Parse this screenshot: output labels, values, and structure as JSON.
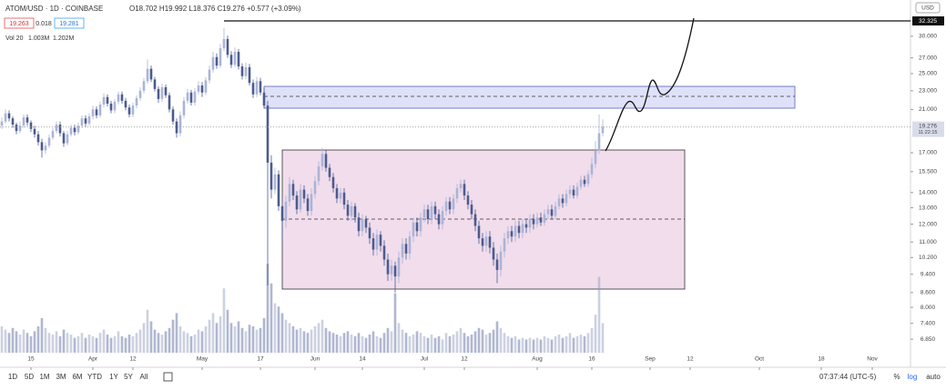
{
  "chart_data": {
    "type": "candlestick",
    "symbol": "ATOM/USD · 1D · COINBASE",
    "ohlc_legend": "O18.702 H19.992 L18.376 C19.276 +0.577 (+3.09%)",
    "bid": "19.263",
    "spread": "0.018",
    "ask": "19.281",
    "volume_legend": [
      "Vol 20",
      "1.003M",
      "1.202M"
    ],
    "currency": "USD",
    "log_scale": true,
    "grid": false,
    "up_color": "#aab4d6",
    "down_color": "#4c5b8f",
    "volume_color": "#8f98bd",
    "x": [
      6,
      7,
      8,
      9,
      10,
      11,
      12,
      13,
      14,
      15,
      16,
      17,
      18,
      19,
      20,
      21,
      22,
      23,
      24,
      25,
      26,
      27,
      28,
      29,
      30,
      31,
      32,
      33,
      34,
      35,
      36,
      37,
      38,
      39,
      40,
      41,
      42,
      43,
      44,
      45,
      46,
      47,
      48,
      49,
      50,
      51,
      52,
      53,
      54,
      55,
      56,
      57,
      58,
      59,
      60,
      61,
      62,
      63,
      64,
      65,
      66,
      67,
      68,
      69,
      70,
      71,
      72,
      73,
      74,
      75,
      76,
      77,
      78,
      79,
      80,
      81,
      82,
      83,
      84,
      85,
      86,
      87,
      88,
      89,
      90,
      91,
      92,
      93,
      94,
      95,
      96,
      97,
      98,
      99,
      100,
      101,
      102,
      103,
      104,
      105,
      106,
      107,
      108,
      109,
      110,
      111,
      112,
      113,
      114,
      115,
      116,
      117,
      118,
      119,
      120,
      121,
      122,
      123,
      124,
      125,
      126,
      127,
      128,
      129,
      130,
      131,
      132,
      133,
      134,
      135,
      136,
      137,
      138,
      139,
      140,
      141,
      142,
      143,
      144,
      145,
      146,
      147,
      148,
      149,
      150,
      151,
      152,
      153,
      154,
      155,
      156,
      157,
      158,
      159,
      160,
      161,
      162,
      163,
      164,
      165,
      166,
      167,
      168,
      169,
      170,
      171
    ],
    "open": [
      19.4,
      19.8,
      20.6,
      20.1,
      19.5,
      18.9,
      19.4,
      20.2,
      19.7,
      19.1,
      18.6,
      17.9,
      17.2,
      17.6,
      18.3,
      18.9,
      19.5,
      18.7,
      17.8,
      18.6,
      19.2,
      18.8,
      19.4,
      20.1,
      19.6,
      20.3,
      21.0,
      20.4,
      21.5,
      22.3,
      21.6,
      20.9,
      21.8,
      22.6,
      21.9,
      21.2,
      20.5,
      21.4,
      22.2,
      23.0,
      24.1,
      25.6,
      24.3,
      23.2,
      22.1,
      23.4,
      22.5,
      21.0,
      19.8,
      18.7,
      20.4,
      21.9,
      22.8,
      21.7,
      22.9,
      23.6,
      22.8,
      24.2,
      25.5,
      27.1,
      26.0,
      28.3,
      29.6,
      27.4,
      26.1,
      27.8,
      25.9,
      24.7,
      25.8,
      23.9,
      22.6,
      24.1,
      22.8,
      21.4,
      16.2,
      14.2,
      15.3,
      13.1,
      12.2,
      13.4,
      14.6,
      13.8,
      12.9,
      14.2,
      13.6,
      12.8,
      13.9,
      14.8,
      15.9,
      16.9,
      15.8,
      15.1,
      14.3,
      13.6,
      14.0,
      13.2,
      12.5,
      13.1,
      12.4,
      11.6,
      12.3,
      11.8,
      11.2,
      10.6,
      11.4,
      10.8,
      10.1,
      9.4,
      9.8,
      9.3,
      10.2,
      10.9,
      10.4,
      11.3,
      12.1,
      11.6,
      12.4,
      12.9,
      12.3,
      13.1,
      12.6,
      12.0,
      12.8,
      13.4,
      12.9,
      13.6,
      14.3,
      14.6,
      13.8,
      13.2,
      12.6,
      11.9,
      11.2,
      10.8,
      11.3,
      10.7,
      10.1,
      9.6,
      10.5,
      11.2,
      11.6,
      11.3,
      11.9,
      11.5,
      12.0,
      11.8,
      12.3,
      12.0,
      12.4,
      12.1,
      12.6,
      12.9,
      12.5,
      13.1,
      13.6,
      13.3,
      13.9,
      14.2,
      13.8,
      14.4,
      14.9,
      14.6,
      15.3,
      16.1,
      17.2,
      18.7
    ],
    "high": [
      20.2,
      21.0,
      20.9,
      20.3,
      19.7,
      19.8,
      20.5,
      20.5,
      19.9,
      19.4,
      18.9,
      18.2,
      17.9,
      18.6,
      19.2,
      19.8,
      19.8,
      18.9,
      18.9,
      19.5,
      19.5,
      19.7,
      20.4,
      20.4,
      20.6,
      21.4,
      21.3,
      21.8,
      22.7,
      22.6,
      21.9,
      22.1,
      22.9,
      22.9,
      22.2,
      21.5,
      21.7,
      22.5,
      23.4,
      24.5,
      26.8,
      26.0,
      24.6,
      23.5,
      23.8,
      23.7,
      22.8,
      21.3,
      20.1,
      20.8,
      22.3,
      23.2,
      23.1,
      23.3,
      24.1,
      24.0,
      24.6,
      26.0,
      27.8,
      27.6,
      28.9,
      31.2,
      30.1,
      27.9,
      28.4,
      28.2,
      26.3,
      26.4,
      26.2,
      24.3,
      24.6,
      24.5,
      23.3,
      21.9,
      16.8,
      15.8,
      15.6,
      13.6,
      13.8,
      15.1,
      14.9,
      14.1,
      14.6,
      14.5,
      13.9,
      14.3,
      15.2,
      16.3,
      17.4,
      17.2,
      16.1,
      15.4,
      14.6,
      14.3,
      14.3,
      13.5,
      13.4,
      13.3,
      12.7,
      12.6,
      12.5,
      12.1,
      11.5,
      11.7,
      11.6,
      11.1,
      10.4,
      10.1,
      10.0,
      10.5,
      11.2,
      11.2,
      11.6,
      12.4,
      12.4,
      12.7,
      13.2,
      13.2,
      13.4,
      13.4,
      12.9,
      13.1,
      13.7,
      13.7,
      13.9,
      14.6,
      14.9,
      14.9,
      14.1,
      13.5,
      12.9,
      12.2,
      11.5,
      11.6,
      11.6,
      11.0,
      10.4,
      10.8,
      11.5,
      11.9,
      11.9,
      12.2,
      12.2,
      12.3,
      12.3,
      12.6,
      12.6,
      12.7,
      12.7,
      12.9,
      13.2,
      13.2,
      13.4,
      13.9,
      13.9,
      14.2,
      14.5,
      14.5,
      14.7,
      15.2,
      15.2,
      15.6,
      16.6,
      18.0,
      20.5,
      20.0
    ],
    "low": [
      19.1,
      19.6,
      19.8,
      19.2,
      18.6,
      18.7,
      19.2,
      19.4,
      18.8,
      18.3,
      17.6,
      16.6,
      16.9,
      17.4,
      18.1,
      18.7,
      18.4,
      17.5,
      17.6,
      18.4,
      18.5,
      18.6,
      19.2,
      19.3,
      19.4,
      20.0,
      20.1,
      20.2,
      21.2,
      21.3,
      20.6,
      20.6,
      21.5,
      21.6,
      20.9,
      20.2,
      20.2,
      21.1,
      21.9,
      22.7,
      23.8,
      24.0,
      22.9,
      21.7,
      21.8,
      22.2,
      20.7,
      19.5,
      18.3,
      18.4,
      20.1,
      21.6,
      21.4,
      21.4,
      22.6,
      22.3,
      22.5,
      23.8,
      25.1,
      25.6,
      25.7,
      27.9,
      27.0,
      25.7,
      25.8,
      25.5,
      24.3,
      24.3,
      23.6,
      22.2,
      22.3,
      22.5,
      21.1,
      8.9,
      13.6,
      13.9,
      12.8,
      11.1,
      11.8,
      13.1,
      13.5,
      12.6,
      12.7,
      13.3,
      12.5,
      12.5,
      13.6,
      14.5,
      15.6,
      15.5,
      14.8,
      14.0,
      13.3,
      13.3,
      12.9,
      12.2,
      12.2,
      12.1,
      11.3,
      11.3,
      11.5,
      10.9,
      10.3,
      10.3,
      10.5,
      9.8,
      9.1,
      9.1,
      8.6,
      9.0,
      9.9,
      10.1,
      10.1,
      11.0,
      11.3,
      11.3,
      12.1,
      12.0,
      12.0,
      12.3,
      11.7,
      11.7,
      12.5,
      12.6,
      12.6,
      13.3,
      14.0,
      13.5,
      12.9,
      12.3,
      11.6,
      10.9,
      10.5,
      10.5,
      10.4,
      9.8,
      9.0,
      9.3,
      10.2,
      10.9,
      11.0,
      11.0,
      11.2,
      11.2,
      11.5,
      11.5,
      11.7,
      11.8,
      11.9,
      11.9,
      12.3,
      12.3,
      12.3,
      12.9,
      13.0,
      13.1,
      13.6,
      13.6,
      13.6,
      14.2,
      14.4,
      14.4,
      15.0,
      15.8,
      16.9,
      18.4
    ],
    "close": [
      19.8,
      20.6,
      20.1,
      19.5,
      18.9,
      19.4,
      20.2,
      19.7,
      19.1,
      18.6,
      17.9,
      17.2,
      17.6,
      18.3,
      18.9,
      19.5,
      18.7,
      17.8,
      18.6,
      19.2,
      18.8,
      19.4,
      20.1,
      19.6,
      20.3,
      21.0,
      20.4,
      21.5,
      22.3,
      21.6,
      20.9,
      21.8,
      22.6,
      21.9,
      21.2,
      20.5,
      21.4,
      22.2,
      23.0,
      24.1,
      25.6,
      24.3,
      23.2,
      22.1,
      23.4,
      22.5,
      21.0,
      19.8,
      18.7,
      20.4,
      21.9,
      22.8,
      21.7,
      22.9,
      23.6,
      22.8,
      24.2,
      25.5,
      27.1,
      26.0,
      28.3,
      29.6,
      27.4,
      26.1,
      27.8,
      25.9,
      24.7,
      25.8,
      23.9,
      22.6,
      24.1,
      22.8,
      21.4,
      16.2,
      14.2,
      15.3,
      13.1,
      12.2,
      13.4,
      14.6,
      13.8,
      12.9,
      14.2,
      13.6,
      12.8,
      13.9,
      14.8,
      15.9,
      16.9,
      15.8,
      15.1,
      14.3,
      13.6,
      14.0,
      13.2,
      12.5,
      13.1,
      12.4,
      11.6,
      12.3,
      11.8,
      11.2,
      10.6,
      11.4,
      10.8,
      10.1,
      9.4,
      9.8,
      9.3,
      10.2,
      10.9,
      10.4,
      11.3,
      12.1,
      11.6,
      12.4,
      12.9,
      12.3,
      13.1,
      12.6,
      12.0,
      12.8,
      13.4,
      12.9,
      13.6,
      14.3,
      14.6,
      13.8,
      13.2,
      12.6,
      11.9,
      11.2,
      10.8,
      11.3,
      10.7,
      10.1,
      9.6,
      10.5,
      11.2,
      11.6,
      11.3,
      11.9,
      11.5,
      12.0,
      11.8,
      12.3,
      12.0,
      12.4,
      12.1,
      12.6,
      12.9,
      12.5,
      13.1,
      13.6,
      13.3,
      13.9,
      14.2,
      13.8,
      14.4,
      14.9,
      14.6,
      15.3,
      16.1,
      17.2,
      18.7,
      19.3
    ],
    "volume": [
      1.6,
      1.4,
      1.2,
      1.5,
      1.3,
      1.1,
      1.4,
      1.2,
      1.0,
      1.3,
      1.6,
      2.1,
      1.5,
      1.2,
      1.1,
      1.3,
      1.0,
      1.4,
      1.2,
      1.1,
      0.9,
      1.0,
      1.2,
      0.9,
      1.1,
      1.0,
      0.9,
      1.2,
      1.4,
      1.1,
      0.9,
      1.0,
      1.3,
      1.0,
      0.9,
      1.1,
      1.0,
      1.2,
      1.4,
      1.8,
      2.6,
      1.9,
      1.4,
      1.2,
      1.1,
      1.3,
      1.5,
      2.0,
      2.4,
      1.6,
      1.3,
      1.2,
      1.0,
      1.1,
      1.4,
      1.3,
      1.6,
      2.0,
      2.4,
      1.8,
      2.2,
      3.9,
      2.6,
      1.8,
      1.6,
      1.9,
      1.5,
      1.3,
      1.7,
      1.6,
      1.4,
      1.5,
      2.1,
      5.4,
      4.2,
      3.0,
      2.8,
      2.4,
      2.0,
      1.8,
      1.6,
      1.4,
      1.5,
      1.3,
      1.2,
      1.4,
      1.6,
      1.8,
      2.0,
      1.5,
      1.3,
      1.2,
      1.1,
      1.0,
      1.2,
      1.3,
      1.1,
      1.0,
      1.2,
      1.0,
      0.9,
      1.1,
      1.3,
      1.0,
      0.9,
      1.2,
      1.5,
      1.3,
      3.6,
      1.8,
      1.4,
      1.2,
      1.0,
      1.1,
      1.3,
      1.2,
      1.0,
      0.9,
      1.1,
      0.9,
      1.0,
      0.8,
      1.2,
      1.0,
      1.1,
      1.3,
      1.5,
      1.2,
      1.0,
      1.1,
      1.3,
      1.5,
      1.4,
      1.1,
      1.2,
      1.4,
      1.9,
      1.5,
      1.2,
      1.0,
      0.9,
      1.0,
      0.8,
      0.9,
      0.8,
      0.9,
      0.8,
      0.9,
      0.8,
      1.0,
      0.9,
      0.8,
      1.0,
      1.1,
      0.9,
      1.0,
      1.2,
      0.9,
      1.0,
      1.1,
      1.0,
      1.2,
      1.5,
      2.3,
      4.6,
      1.8
    ],
    "volume_ylim": [
      0,
      5.4
    ],
    "xlim": [
      5.5,
      255.5
    ],
    "xticks": [
      {
        "value": 14,
        "label": "15"
      },
      {
        "value": 31,
        "label": "Apr"
      },
      {
        "value": 42,
        "label": "12"
      },
      {
        "value": 61,
        "label": "May"
      },
      {
        "value": 77,
        "label": "17"
      },
      {
        "value": 92,
        "label": "Jun"
      },
      {
        "value": 105,
        "label": "14"
      },
      {
        "value": 122,
        "label": "Jul"
      },
      {
        "value": 133,
        "label": "12"
      },
      {
        "value": 153,
        "label": "Aug"
      },
      {
        "value": 168,
        "label": "16"
      },
      {
        "value": 184,
        "label": "Sep"
      },
      {
        "value": 195,
        "label": "12"
      },
      {
        "value": 214,
        "label": "Oct"
      },
      {
        "value": 231,
        "label": "18"
      },
      {
        "value": 245,
        "label": "Nov"
      }
    ],
    "ylim": [
      6.08,
      35.8
    ],
    "yticks": [
      {
        "value": 30,
        "label": "30.000"
      },
      {
        "value": 27,
        "label": "27.000"
      },
      {
        "value": 25,
        "label": "25.000"
      },
      {
        "value": 23,
        "label": "23.000"
      },
      {
        "value": 21,
        "label": "21.000"
      },
      {
        "value": 17,
        "label": "17.000"
      },
      {
        "value": 15.5,
        "label": "15.500"
      },
      {
        "value": 14,
        "label": "14.000"
      },
      {
        "value": 13,
        "label": "13.000"
      },
      {
        "value": 12,
        "label": "12.000"
      },
      {
        "value": 11,
        "label": "11.000"
      },
      {
        "value": 10.2,
        "label": "10.200"
      },
      {
        "value": 9.4,
        "label": "9.400"
      },
      {
        "value": 8.6,
        "label": "8.600"
      },
      {
        "value": 8,
        "label": "8.000"
      },
      {
        "value": 7.4,
        "label": "7.400"
      },
      {
        "value": 6.85,
        "label": "6.850"
      }
    ],
    "line_price": 32.325,
    "last_price": 19.276,
    "countdown": "11:22:15"
  },
  "toolbar": {
    "ranges": [
      "1D",
      "5D",
      "1M",
      "3M",
      "6M",
      "YTD",
      "1Y",
      "5Y",
      "All"
    ],
    "clock": "07:37:44 (UTC-5)",
    "options": [
      "%",
      "log",
      "auto"
    ]
  }
}
